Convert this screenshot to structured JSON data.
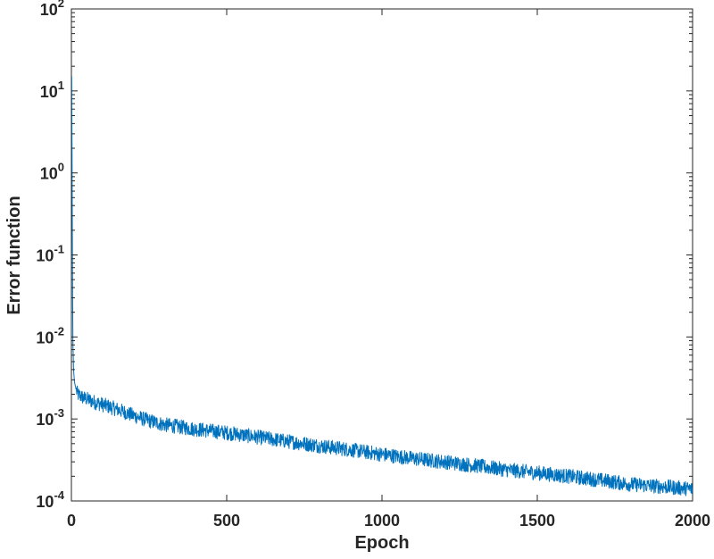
{
  "chart_data": {
    "type": "line",
    "xlabel": "Epoch",
    "ylabel": "Error function",
    "xlim": [
      0,
      2000
    ],
    "ylim": [
      0.0001,
      100
    ],
    "yscale": "log",
    "grid": false,
    "x_ticks": [
      0,
      500,
      1000,
      1500,
      2000
    ],
    "x_tick_labels": [
      "0",
      "500",
      "1000",
      "1500",
      "2000"
    ],
    "y_ticks": [
      {
        "value": 0.0001,
        "base": "10",
        "exp": "-4"
      },
      {
        "value": 0.001,
        "base": "10",
        "exp": "-3"
      },
      {
        "value": 0.01,
        "base": "10",
        "exp": "-2"
      },
      {
        "value": 0.1,
        "base": "10",
        "exp": "-1"
      },
      {
        "value": 1,
        "base": "10",
        "exp": "0"
      },
      {
        "value": 10,
        "base": "10",
        "exp": "1"
      },
      {
        "value": 100,
        "base": "10",
        "exp": "2"
      }
    ],
    "series": [
      {
        "color": "#0072BD",
        "x": [
          1,
          2,
          3,
          4,
          5,
          7,
          10,
          15,
          20,
          30,
          40,
          50,
          75,
          100,
          150,
          200,
          250,
          300,
          400,
          500,
          600,
          700,
          800,
          900,
          1000,
          1100,
          1200,
          1300,
          1400,
          1500,
          1600,
          1700,
          1800,
          1900,
          2000
        ],
        "y": [
          15,
          2,
          0.2,
          0.03,
          0.008,
          0.004,
          0.0028,
          0.0023,
          0.002,
          0.0019,
          0.0018,
          0.00175,
          0.0016,
          0.0015,
          0.0013,
          0.0011,
          0.00095,
          0.00085,
          0.00075,
          0.00068,
          0.0006,
          0.00053,
          0.00047,
          0.00042,
          0.00037,
          0.00033,
          0.0003,
          0.00027,
          0.00024,
          0.00022,
          0.0002,
          0.00018,
          0.00016,
          0.00015,
          0.00014
        ],
        "noise_decades": 0.09
      }
    ]
  }
}
